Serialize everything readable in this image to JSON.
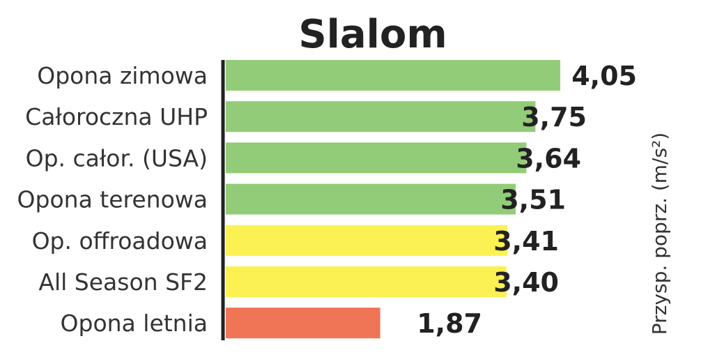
{
  "chart_data": {
    "type": "bar",
    "orientation": "horizontal",
    "title": "Slalom",
    "ylabel": "Przysp. poprz.  (m/s²)",
    "categories": [
      "Opona zimowa",
      "Całoroczna UHP",
      "Op. całor. (USA)",
      "Opona terenowa",
      "Op. offroadowa",
      "All Season SF2",
      "Opona letnia"
    ],
    "values": [
      4.05,
      3.75,
      3.64,
      3.51,
      3.41,
      3.4,
      1.87
    ],
    "value_labels": [
      "4,05",
      "3,75",
      "3,64",
      "3,51",
      "3,41",
      "3,40",
      "1,87"
    ],
    "colors": [
      "#92cc78",
      "#92cc78",
      "#92cc78",
      "#92cc78",
      "#fbf153",
      "#fbf153",
      "#f07456"
    ],
    "axis_color": "#222222",
    "grid": false,
    "legend": "none"
  }
}
